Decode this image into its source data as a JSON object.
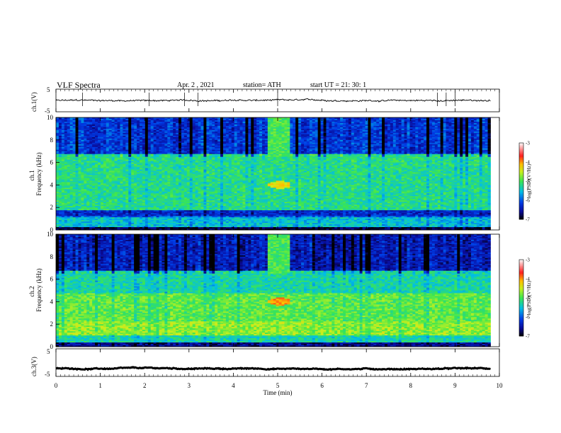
{
  "header": {
    "title": "VLF  Spectra",
    "date": "Apr. 2  , 2021",
    "station": "station= ATH",
    "start": "start  UT  =   21: 30: 1"
  },
  "chart_data": [
    {
      "type": "line",
      "id": "ch1-waveform",
      "ylabel": "ch.1(V)",
      "ylim": [
        -5,
        5
      ],
      "yticks": [
        "5",
        "-5"
      ],
      "xlim": [
        0,
        10
      ],
      "mean_value": 0,
      "noise_amplitude": 0.6,
      "spike_times_min": [
        0.6,
        2.1,
        2.9,
        3.2,
        5.0,
        8.6,
        8.8,
        9.0
      ]
    },
    {
      "type": "heatmap",
      "id": "ch1-spectrogram",
      "ylabel_top": "ch.1",
      "ylabel": "Frequency  (kHz)",
      "ylim": [
        0,
        10
      ],
      "yticks": [
        "0",
        "2",
        "4",
        "6",
        "8",
        "10"
      ],
      "xlim": [
        0,
        10
      ],
      "xdata_max": 9.8,
      "colorbar": {
        "label": "log(PSD)(V²/Hz)",
        "range": [
          -7,
          -3
        ],
        "ticks": [
          "-3",
          "-4",
          "-5",
          "-6",
          "-7"
        ]
      },
      "bands": [
        {
          "fmin": 0,
          "fmax": 0.3,
          "level": -6.8
        },
        {
          "fmin": 0.3,
          "fmax": 1.1,
          "level": -5.5
        },
        {
          "fmin": 1.1,
          "fmax": 1.3,
          "level": -6.0
        },
        {
          "fmin": 1.3,
          "fmax": 1.8,
          "level": -6.3
        },
        {
          "fmin": 1.8,
          "fmax": 6.8,
          "level": -5.2
        },
        {
          "fmin": 6.8,
          "fmax": 10,
          "level": -6.2
        }
      ],
      "quiet_window_min": [
        4.8,
        5.3
      ],
      "hotspot": {
        "t_min": 5.05,
        "f_khz": 4.0,
        "level": -4.3
      }
    },
    {
      "type": "heatmap",
      "id": "ch2-spectrogram",
      "ylabel_top": "ch.2",
      "ylabel": "Frequency  (kHz)",
      "ylim": [
        0,
        10
      ],
      "yticks": [
        "0",
        "2",
        "4",
        "6",
        "8",
        "10"
      ],
      "xlim": [
        0,
        10
      ],
      "xdata_max": 9.8,
      "colorbar": {
        "label": "log(PSD)(V²/Hz)",
        "range": [
          -7,
          -3
        ],
        "ticks": [
          "-3",
          "-4",
          "-5",
          "-6",
          "-7"
        ]
      },
      "bands": [
        {
          "fmin": 0,
          "fmax": 0.4,
          "level": -6.6
        },
        {
          "fmin": 0.4,
          "fmax": 1.0,
          "level": -5.3
        },
        {
          "fmin": 1.0,
          "fmax": 2.2,
          "level": -4.7
        },
        {
          "fmin": 2.2,
          "fmax": 4.8,
          "level": -4.9
        },
        {
          "fmin": 4.8,
          "fmax": 6.8,
          "level": -5.3
        },
        {
          "fmin": 6.8,
          "fmax": 10,
          "level": -6.4
        }
      ],
      "quiet_window_min": [
        4.8,
        5.3
      ],
      "hotspot": {
        "t_min": 5.05,
        "f_khz": 4.0,
        "level": -4.0
      }
    },
    {
      "type": "line",
      "id": "ch3-waveform",
      "ylabel": "ch.3(V)",
      "ylim": [
        -5,
        5
      ],
      "yticks": [
        "5",
        "-5"
      ],
      "xlim": [
        0,
        10
      ],
      "mean_value": -2.2,
      "noise_amplitude": 0.25,
      "xlabel": "Time  (min)",
      "xticks": [
        "0",
        "1",
        "2",
        "3",
        "4",
        "5",
        "6",
        "7",
        "8",
        "9",
        "10"
      ]
    }
  ]
}
